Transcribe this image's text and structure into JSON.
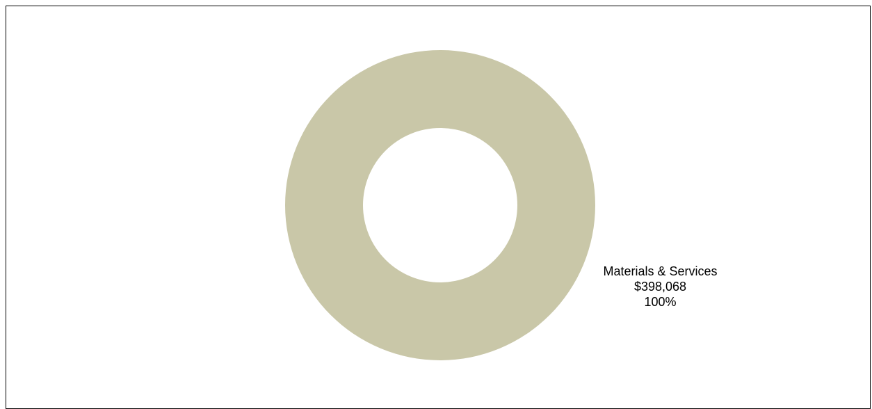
{
  "chart_data": {
    "type": "pie",
    "style": "donut",
    "title": "",
    "slices": [
      {
        "label": "Materials & Services",
        "value": 398068,
        "value_text": "$398,068",
        "percent": 100,
        "percent_text": "100%",
        "color": "#C9C7A8"
      }
    ],
    "legend": "none"
  }
}
